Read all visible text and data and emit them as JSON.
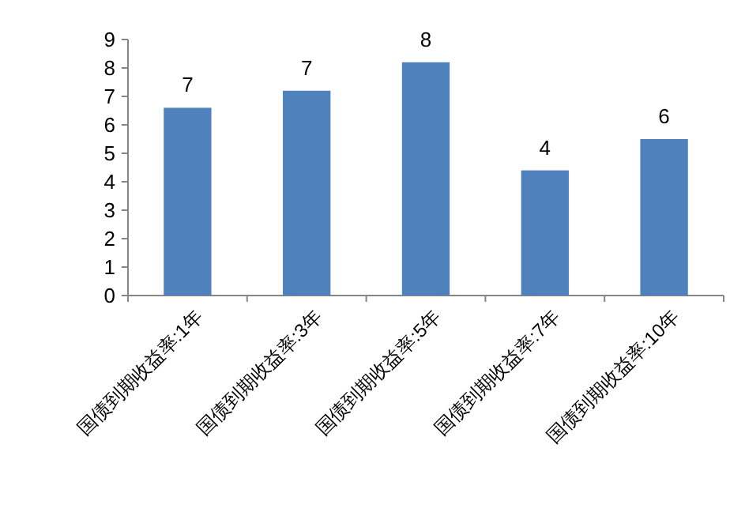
{
  "chart_data": {
    "type": "bar",
    "categories": [
      "国债到期收益率:1年",
      "国债到期收益率:3年",
      "国债到期收益率:5年",
      "国债到期收益率:7年",
      "国债到期收益率:10年"
    ],
    "values": [
      6.6,
      7.2,
      8.2,
      4.4,
      5.5
    ],
    "value_labels": [
      "7",
      "7",
      "8",
      "4",
      "6"
    ],
    "color": "#4f81bd",
    "ylim": [
      0,
      9
    ],
    "yticks": [
      0,
      1,
      2,
      3,
      4,
      5,
      6,
      7,
      8,
      9
    ]
  }
}
